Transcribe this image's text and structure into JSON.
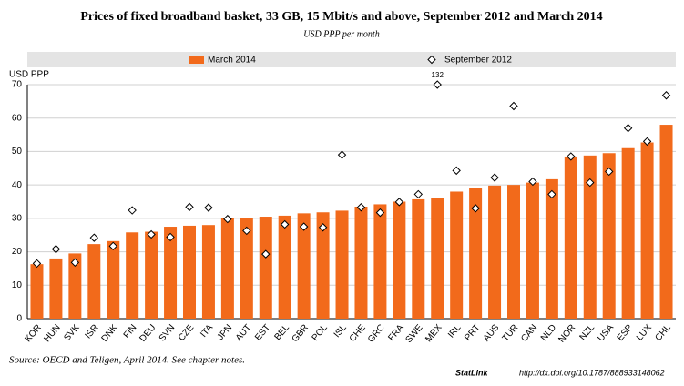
{
  "chart_data": {
    "type": "bar",
    "title": "Prices of fixed broadband basket, 33 GB, 15 Mbit/s and above, September 2012 and March 2014",
    "subtitle": "USD PPP per month",
    "y_label": "USD PPP",
    "source": "Source:  OECD and Teligen, April 2014. See chapter notes.",
    "statlink": "StatLink",
    "url": "http://dx.doi.org/10.1787/888933148062",
    "categories": [
      "KOR",
      "HUN",
      "SVK",
      "ISR",
      "DNK",
      "FIN",
      "DEU",
      "SVN",
      "CZE",
      "ITA",
      "JPN",
      "AUT",
      "EST",
      "BEL",
      "GBR",
      "POL",
      "ISL",
      "CHE",
      "GRC",
      "FRA",
      "SWE",
      "MEX",
      "IRL",
      "PRT",
      "AUS",
      "TUR",
      "CAN",
      "NLD",
      "NOR",
      "NZL",
      "USA",
      "ESP",
      "LUX",
      "CHL"
    ],
    "series": [
      {
        "name": "March 2014",
        "color": "#f26a1b",
        "kind": "bar",
        "values": [
          16.3,
          18,
          19.5,
          22.3,
          23.2,
          25.8,
          26,
          27.5,
          27.8,
          28,
          30,
          30.2,
          30.5,
          30.8,
          31.5,
          31.8,
          32.3,
          33.5,
          34.2,
          35,
          35.7,
          36,
          38,
          39,
          39.8,
          40,
          40.7,
          41.7,
          48.5,
          48.8,
          49.5,
          51,
          52.7,
          58
        ]
      },
      {
        "name": "September 2012",
        "color": "#ffffff",
        "kind": "marker",
        "values": [
          16.5,
          20.8,
          16.8,
          24.2,
          21.7,
          32.4,
          25.2,
          24.4,
          33.4,
          33.2,
          29.8,
          26.3,
          19.3,
          28.2,
          27.5,
          27.3,
          49,
          33.3,
          31.7,
          34.9,
          37.2,
          132,
          44.3,
          33,
          42.2,
          63.6,
          41,
          37.2,
          48.5,
          40.7,
          44,
          57,
          53,
          66.8
        ],
        "value_labels": [
          null,
          null,
          null,
          null,
          null,
          null,
          null,
          null,
          null,
          null,
          null,
          null,
          null,
          null,
          null,
          null,
          null,
          null,
          null,
          null,
          null,
          "132",
          null,
          null,
          null,
          null,
          null,
          null,
          null,
          null,
          null,
          null,
          null,
          null
        ]
      }
    ],
    "ylim": [
      0,
      70
    ],
    "yticks": [
      0,
      10,
      20,
      30,
      40,
      50,
      60,
      70
    ],
    "grid": true
  }
}
